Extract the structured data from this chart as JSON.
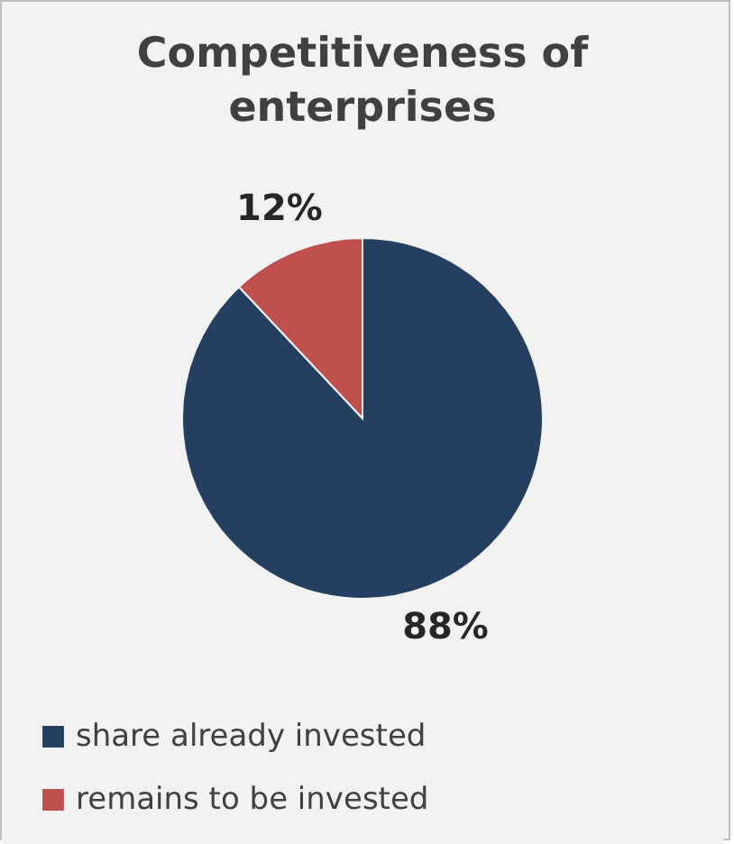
{
  "chart_data": {
    "type": "pie",
    "title": "Competitiveness of enterprises",
    "categories": [
      "share already invested",
      "remains to be invested"
    ],
    "values": [
      88,
      12
    ],
    "colors": [
      "#243f60",
      "#c0504d"
    ],
    "value_labels": [
      "88%",
      "12%"
    ],
    "legend": "bottom"
  }
}
